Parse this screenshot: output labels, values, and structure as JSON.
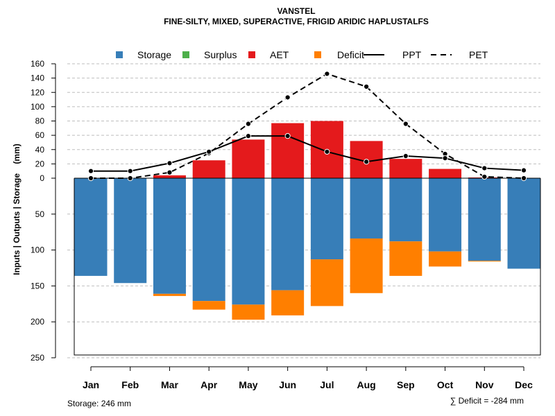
{
  "chart_data": {
    "type": "bar",
    "title": "VANSTEL",
    "subtitle": "FINE-SILTY, MIXED, SUPERACTIVE, FRIGID ARIDIC HAPLUSTALFS",
    "ylabel": "Inputs | Outputs | Storage    (mm)",
    "categories": [
      "Jan",
      "Feb",
      "Mar",
      "Apr",
      "May",
      "Jun",
      "Jul",
      "Aug",
      "Sep",
      "Oct",
      "Nov",
      "Dec"
    ],
    "ylim_positive": [
      0,
      160
    ],
    "ylim_negative": [
      0,
      250
    ],
    "yticks_positive": [
      0,
      20,
      40,
      60,
      80,
      100,
      120,
      140,
      160
    ],
    "yticks_negative": [
      50,
      100,
      150,
      200,
      250
    ],
    "grid": "dashed horizontal",
    "legend_position": "top",
    "legend": [
      {
        "name": "Storage",
        "kind": "box",
        "color": "#377EB8"
      },
      {
        "name": "Surplus",
        "kind": "box",
        "color": "#4DAF4A"
      },
      {
        "name": "AET",
        "kind": "box",
        "color": "#E41A1C"
      },
      {
        "name": "Deficit",
        "kind": "box",
        "color": "#FF7F00"
      },
      {
        "name": "PPT",
        "kind": "solid-line",
        "color": "#000000"
      },
      {
        "name": "PET",
        "kind": "dashed-line",
        "color": "#000000"
      }
    ],
    "series": [
      {
        "name": "AET",
        "values": [
          0,
          0,
          4,
          25,
          54,
          77,
          80,
          52,
          27,
          13,
          1,
          0
        ]
      },
      {
        "name": "Storage",
        "values": [
          136,
          146,
          161,
          171,
          176,
          156,
          113,
          84,
          88,
          102,
          115,
          126
        ]
      },
      {
        "name": "Deficit",
        "values": [
          0,
          0,
          3,
          12,
          21,
          35,
          65,
          76,
          48,
          21,
          1,
          0
        ]
      },
      {
        "name": "Surplus",
        "values": [
          0,
          0,
          0,
          0,
          0,
          0,
          0,
          0,
          0,
          0,
          0,
          0
        ]
      },
      {
        "name": "PPT",
        "values": [
          10,
          10,
          21,
          37,
          59,
          59,
          37,
          23,
          31,
          28,
          14,
          11
        ]
      },
      {
        "name": "PET",
        "values": [
          0,
          0,
          8,
          35,
          76,
          113,
          146,
          128,
          76,
          34,
          2,
          0
        ]
      }
    ],
    "colors": {
      "storage": "#377EB8",
      "surplus": "#4DAF4A",
      "aet": "#E41A1C",
      "deficit": "#FF7F00",
      "grid": "#BEBEBE"
    }
  },
  "footer": {
    "storage_label": "Storage: 246 mm",
    "deficit_label": "∑ Deficit = -284 mm"
  }
}
